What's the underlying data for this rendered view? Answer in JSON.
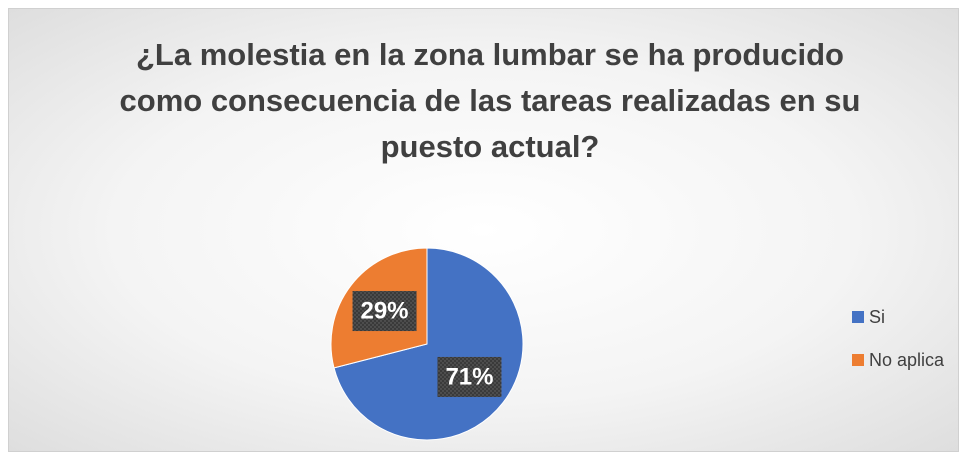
{
  "chart_data": {
    "type": "pie",
    "title": "¿La molestia en la zona lumbar se ha producido como consecuencia de las tareas realizadas en su puesto actual?",
    "categories": [
      "Si",
      "No aplica"
    ],
    "values": [
      71,
      29
    ],
    "value_labels": [
      "71%",
      "29%"
    ],
    "colors": [
      "#4472c4",
      "#ed7d31"
    ],
    "legend": "right"
  }
}
